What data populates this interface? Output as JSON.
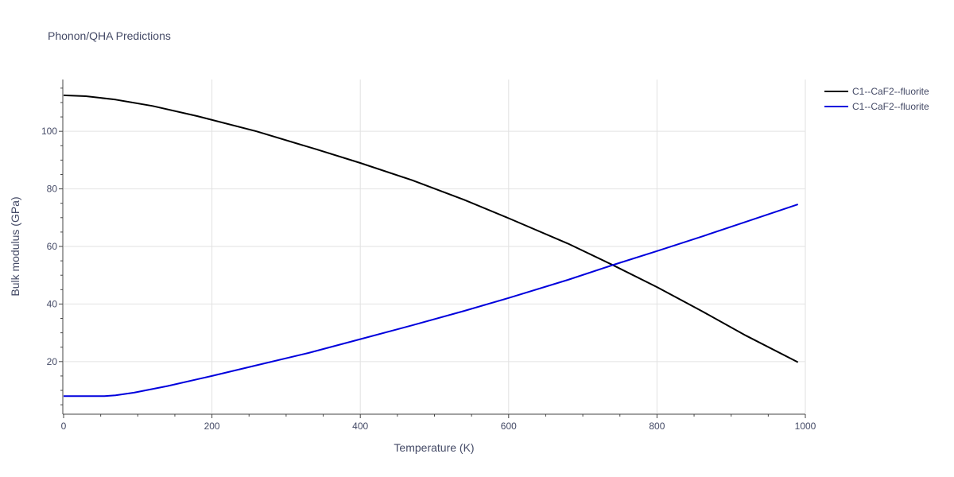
{
  "chart_data": {
    "type": "line",
    "title": "Phonon/QHA Predictions",
    "xlabel": "Temperature (K)",
    "ylabel": "Bulk modulus (GPa)",
    "xlim": [
      0,
      1000
    ],
    "ylim": [
      2,
      118
    ],
    "x_ticks": [
      0,
      200,
      400,
      600,
      800,
      1000
    ],
    "y_ticks": [
      20,
      40,
      60,
      80,
      100
    ],
    "grid": true,
    "legend_position": "top-right",
    "series": [
      {
        "name": "C1--CaF2--fluorite",
        "color": "#000000",
        "x": [
          0,
          30,
          70,
          120,
          180,
          260,
          340,
          400,
          470,
          540,
          600,
          680,
          740,
          800,
          860,
          920,
          990
        ],
        "y": [
          112.5,
          112.2,
          111.0,
          108.8,
          105.3,
          100.0,
          93.8,
          89.0,
          83.0,
          76.2,
          69.8,
          61.0,
          53.6,
          45.9,
          37.6,
          29.0,
          19.8
        ]
      },
      {
        "name": "C1--CaF2--fluorite",
        "color": "#0000dd",
        "x": [
          0,
          30,
          55,
          70,
          95,
          140,
          200,
          260,
          330,
          400,
          470,
          540,
          600,
          680,
          740,
          800,
          860,
          920,
          990
        ],
        "y": [
          8.0,
          8.0,
          8.0,
          8.3,
          9.2,
          11.5,
          15.0,
          18.7,
          23.0,
          27.8,
          32.6,
          37.6,
          42.1,
          48.4,
          53.5,
          58.4,
          63.4,
          68.6,
          74.6
        ]
      }
    ]
  }
}
